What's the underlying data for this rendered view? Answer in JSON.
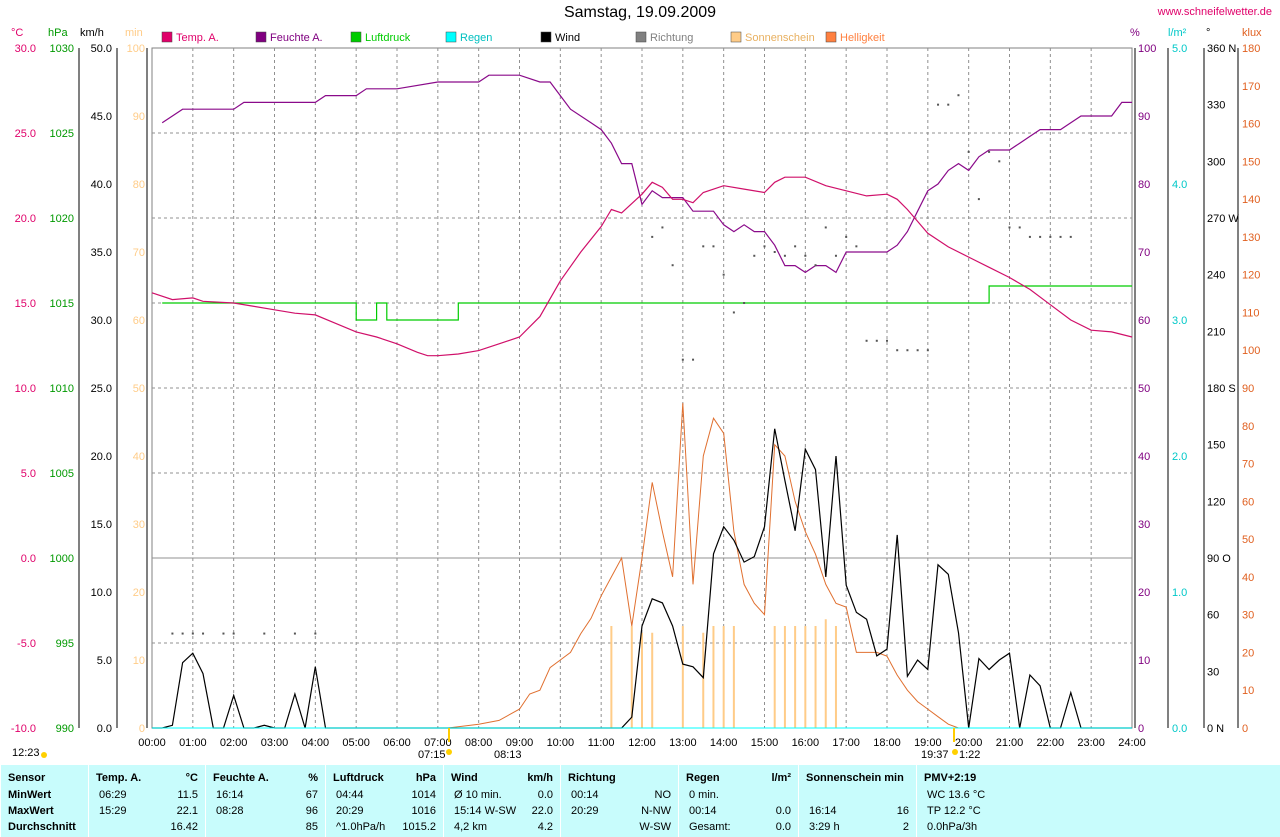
{
  "header": {
    "title": "Samstag, 19.09.2009",
    "url": "www.schneifelwetter.de"
  },
  "chart_data": {
    "type": "line",
    "title": "Samstag, 19.09.2009",
    "grid": true,
    "x_ticks": [
      "00:00",
      "01:00",
      "02:00",
      "03:00",
      "04:00",
      "05:00",
      "06:00",
      "07:00",
      "08:00",
      "09:00",
      "10:00",
      "11:00",
      "12:00",
      "13:00",
      "14:00",
      "15:00",
      "16:00",
      "17:00",
      "18:00",
      "19:00",
      "20:00",
      "21:00",
      "22:00",
      "23:00",
      "24:00"
    ],
    "axes": {
      "temp": {
        "unit": "°C",
        "color": "#e0006a",
        "ticks": [
          "30.0",
          "25.0",
          "20.0",
          "15.0",
          "10.0",
          "5.0",
          "0.0",
          "-5.0",
          "-10.0"
        ],
        "range": [
          -10,
          30
        ]
      },
      "press": {
        "unit": "hPa",
        "color": "#009900",
        "ticks": [
          "1030",
          "1025",
          "1020",
          "1015",
          "1010",
          "1005",
          "1000",
          "995",
          "990"
        ],
        "range": [
          990,
          1030
        ]
      },
      "wind": {
        "unit": "km/h",
        "color": "#000000",
        "ticks": [
          "50.0",
          "45.0",
          "40.0",
          "35.0",
          "30.0",
          "25.0",
          "20.0",
          "15.0",
          "10.0",
          "5.0",
          "0.0"
        ],
        "range": [
          0,
          50
        ]
      },
      "sun": {
        "unit": "min",
        "color": "#ffcc88",
        "ticks": [
          "100",
          "90",
          "80",
          "70",
          "60",
          "50",
          "40",
          "30",
          "20",
          "10",
          "0"
        ],
        "range": [
          0,
          100
        ]
      },
      "hum": {
        "unit": "%",
        "color": "#800080",
        "ticks": [
          "100",
          "90",
          "80",
          "70",
          "60",
          "50",
          "40",
          "30",
          "20",
          "10",
          "0"
        ],
        "range": [
          0,
          100
        ]
      },
      "rain": {
        "unit": "l/m²",
        "color": "#00c8c8",
        "ticks": [
          "5.0",
          "4.0",
          "3.0",
          "2.0",
          "1.0",
          "0.0"
        ],
        "range": [
          0,
          5
        ]
      },
      "dir": {
        "unit": "°",
        "color": "#000000",
        "ticks": [
          "360 N",
          "330",
          "300",
          "270 W",
          "240",
          "210",
          "180 S",
          "150",
          "120",
          "90 O",
          "60",
          "30",
          "0 N"
        ],
        "range": [
          0,
          360
        ]
      },
      "lux": {
        "unit": "klux",
        "color": "#e06020",
        "ticks": [
          "180",
          "170",
          "160",
          "150",
          "140",
          "130",
          "120",
          "110",
          "100",
          "90",
          "80",
          "70",
          "60",
          "50",
          "40",
          "30",
          "20",
          "10",
          "0"
        ],
        "range": [
          0,
          180
        ]
      }
    },
    "legend": [
      {
        "name": "Temp. A.",
        "color": "#e0006a"
      },
      {
        "name": "Feuchte A.",
        "color": "#800080"
      },
      {
        "name": "Luftdruck",
        "color": "#00cc00"
      },
      {
        "name": "Regen",
        "color": "#00ffff"
      },
      {
        "name": "Wind",
        "color": "#000000"
      },
      {
        "name": "Richtung",
        "color": "#808080"
      },
      {
        "name": "Sonnenschein",
        "color": "#ffcc88"
      },
      {
        "name": "Helligkeit",
        "color": "#ff8040"
      }
    ],
    "series": {
      "humidity": {
        "x": [
          0.25,
          0.75,
          1.0,
          2.0,
          2.25,
          3.0,
          4.0,
          4.25,
          5.0,
          5.25,
          6.0,
          7.0,
          7.25,
          8.0,
          8.25,
          9.0,
          9.5,
          9.75,
          10.0,
          10.25,
          10.75,
          11.0,
          11.25,
          11.5,
          11.75,
          12.0,
          12.25,
          12.5,
          12.75,
          13.0,
          13.25,
          13.5,
          13.75,
          14.0,
          14.25,
          14.5,
          14.75,
          15.0,
          15.25,
          15.5,
          15.75,
          16.0,
          16.25,
          16.5,
          16.75,
          17.0,
          17.25,
          17.5,
          17.75,
          18.0,
          18.25,
          18.5,
          18.75,
          19.0,
          19.25,
          19.5,
          19.75,
          20.0,
          20.25,
          20.5,
          20.75,
          21.0,
          21.25,
          21.5,
          21.75,
          22.0,
          22.25,
          22.5,
          22.75,
          23.0,
          23.25,
          23.5,
          23.75,
          24.0
        ],
        "y": [
          89,
          91,
          91,
          91,
          92,
          92,
          92,
          93,
          93,
          94,
          94,
          95,
          95,
          95,
          96,
          96,
          95,
          95,
          93,
          91,
          89,
          88,
          86,
          83,
          83,
          77,
          79,
          78,
          78,
          78,
          76,
          76,
          76,
          74,
          73,
          74,
          73,
          73,
          71,
          68,
          68,
          67,
          68,
          68,
          67,
          70,
          70,
          70,
          70,
          70,
          71,
          73,
          76,
          79,
          80,
          82,
          83,
          82,
          84,
          85,
          85,
          85,
          86,
          87,
          88,
          88,
          88,
          89,
          90,
          90,
          90,
          90,
          92,
          92
        ]
      },
      "temperature": {
        "x": [
          0.0,
          0.5,
          1.0,
          1.25,
          2.0,
          2.5,
          3.0,
          3.5,
          4.0,
          4.5,
          5.0,
          5.5,
          6.0,
          6.5,
          6.75,
          7.0,
          7.5,
          8.0,
          8.5,
          9.0,
          9.5,
          10.0,
          10.5,
          11.0,
          11.25,
          11.5,
          12.0,
          12.25,
          12.5,
          12.75,
          13.0,
          13.25,
          13.5,
          14.0,
          14.5,
          15.0,
          15.25,
          15.5,
          16.0,
          16.5,
          17.0,
          17.5,
          18.0,
          18.25,
          18.5,
          18.75,
          19.0,
          19.5,
          20.0,
          20.5,
          21.0,
          21.5,
          22.0,
          22.5,
          23.0,
          23.5,
          24.0
        ],
        "y": [
          15.6,
          15.2,
          15.3,
          15.1,
          15.0,
          14.8,
          14.6,
          14.4,
          14.3,
          13.8,
          13.3,
          13.0,
          12.6,
          12.1,
          11.9,
          11.9,
          12.0,
          12.2,
          12.6,
          13.0,
          14.2,
          16.3,
          18.0,
          19.5,
          20.5,
          20.3,
          21.4,
          22.1,
          21.8,
          21.1,
          21.1,
          20.9,
          21.5,
          21.9,
          21.7,
          21.5,
          22.1,
          22.4,
          22.4,
          21.9,
          21.6,
          21.3,
          21.4,
          21.1,
          20.5,
          19.8,
          19.1,
          18.3,
          17.7,
          17.1,
          16.5,
          15.8,
          14.9,
          14.0,
          13.4,
          13.3,
          13.0
        ]
      },
      "pressure": {
        "x": [
          0.25,
          4.5,
          4.75,
          5.0,
          5.25,
          5.5,
          5.75,
          6.0,
          6.5,
          7.0,
          7.25,
          7.5,
          8.0,
          9.0,
          10.0,
          11.0,
          12.0,
          13.0,
          14.0,
          15.0,
          16.0,
          17.0,
          18.0,
          19.0,
          19.5,
          20.0,
          20.25,
          20.5,
          21.0,
          22.0,
          23.0,
          24.0
        ],
        "y": [
          1015,
          1015,
          1015,
          1014,
          1014,
          1015,
          1014,
          1014,
          1014,
          1014,
          1014,
          1015,
          1015,
          1015,
          1015,
          1015,
          1015,
          1015,
          1015,
          1015,
          1015,
          1015,
          1015,
          1015,
          1015,
          1015,
          1015,
          1016,
          1016,
          1016,
          1016,
          1016
        ]
      },
      "wind": {
        "x": [
          0.0,
          0.25,
          0.5,
          0.75,
          1.0,
          1.25,
          1.5,
          1.75,
          2.0,
          2.25,
          2.5,
          2.75,
          3.0,
          3.25,
          3.5,
          3.75,
          4.0,
          4.25,
          4.5,
          4.75,
          5.0,
          11.5,
          11.75,
          12.0,
          12.25,
          12.5,
          12.75,
          13.0,
          13.25,
          13.5,
          13.75,
          14.0,
          14.25,
          14.5,
          14.75,
          15.0,
          15.25,
          15.5,
          15.75,
          16.0,
          16.25,
          16.5,
          16.75,
          17.0,
          17.25,
          17.5,
          17.75,
          18.0,
          18.25,
          18.5,
          18.75,
          19.0,
          19.25,
          19.5,
          19.75,
          20.0,
          20.25,
          20.5,
          20.75,
          21.0,
          21.25,
          21.5,
          21.75,
          22.0,
          22.25,
          22.5,
          22.75,
          23.0,
          23.25,
          23.5,
          23.75,
          24.0
        ],
        "y": [
          0,
          0,
          0.2,
          4.8,
          5.5,
          4.0,
          0,
          0,
          2.4,
          0,
          0,
          0.2,
          0,
          0,
          2.5,
          0,
          4.5,
          0,
          0,
          0,
          0,
          0,
          0.8,
          7.5,
          9.5,
          9.2,
          7.5,
          4.7,
          4.5,
          3.7,
          12.8,
          14.8,
          13.8,
          12.2,
          12.6,
          14.8,
          22.0,
          18.2,
          14.5,
          20.5,
          19.0,
          11.1,
          20.0,
          10.5,
          8.5,
          8.0,
          5.3,
          5.8,
          14.2,
          3.8,
          5.0,
          4.3,
          12.0,
          11.3,
          7.0,
          0,
          5.1,
          4.3,
          5.0,
          5.5,
          0,
          3.9,
          3.1,
          0,
          0,
          2.6,
          0,
          0,
          0,
          0,
          0,
          0
        ]
      },
      "brightness": {
        "x": [
          7.25,
          8.0,
          8.5,
          9.0,
          9.25,
          9.5,
          9.75,
          10.0,
          10.25,
          10.5,
          10.75,
          11.0,
          11.25,
          11.5,
          11.75,
          12.0,
          12.25,
          12.5,
          12.75,
          13.0,
          13.25,
          13.5,
          13.75,
          14.0,
          14.25,
          14.5,
          14.75,
          15.0,
          15.25,
          15.5,
          15.75,
          16.0,
          16.25,
          16.5,
          16.75,
          17.0,
          17.25,
          17.5,
          17.75,
          18.0,
          18.25,
          18.5,
          18.75,
          19.0,
          19.25,
          19.5,
          19.75
        ],
        "y": [
          0,
          1,
          2,
          5,
          9,
          10,
          16,
          18,
          20,
          25,
          29,
          35,
          40,
          45,
          27,
          45,
          65,
          52,
          40,
          86,
          38,
          72,
          82,
          78,
          52,
          38,
          33,
          30,
          75,
          72,
          60,
          52,
          46,
          38,
          33,
          32,
          20,
          20,
          20,
          19,
          14,
          10,
          7,
          5,
          3,
          1,
          0
        ]
      },
      "sunshine": {
        "x": [
          11.25,
          11.75,
          12.0,
          12.25,
          13.0,
          13.5,
          13.75,
          14.0,
          14.25,
          15.25,
          15.5,
          15.75,
          16.0,
          16.25,
          16.5,
          16.75
        ],
        "y": [
          15,
          15,
          14,
          14,
          15,
          14,
          15,
          15,
          15,
          15,
          15,
          15,
          15,
          15,
          16,
          15
        ]
      },
      "direction": {
        "x": [
          0.5,
          0.75,
          1.0,
          1.25,
          1.75,
          2.0,
          2.75,
          3.5,
          4.0,
          12.25,
          12.5,
          12.75,
          13.0,
          13.25,
          13.5,
          13.75,
          14.0,
          14.25,
          14.5,
          14.75,
          15.0,
          15.25,
          15.5,
          15.75,
          16.0,
          16.25,
          16.5,
          16.75,
          17.0,
          17.25,
          17.5,
          17.75,
          18.0,
          18.25,
          18.5,
          18.75,
          19.0,
          19.25,
          19.5,
          19.75,
          20.0,
          20.25,
          20.5,
          20.75,
          21.0,
          21.25,
          21.5,
          21.75,
          22.0,
          22.25,
          22.5
        ],
        "y": [
          50,
          50,
          50,
          50,
          50,
          50,
          50,
          50,
          50,
          260,
          265,
          245,
          195,
          195,
          255,
          255,
          240,
          220,
          225,
          250,
          255,
          252,
          250,
          255,
          250,
          245,
          265,
          250,
          260,
          255,
          205,
          205,
          205,
          200,
          200,
          200,
          200,
          330,
          330,
          335,
          305,
          280,
          305,
          300,
          265,
          265,
          260,
          260,
          260,
          260,
          260
        ]
      },
      "rain": {
        "x": [
          0.0,
          24.0
        ],
        "y": [
          0.0,
          0.0
        ]
      }
    },
    "markers": {
      "left_time": "12:23",
      "sunrise": "07:15",
      "sunrise_mark": "08:13",
      "sunset": "19:37",
      "sunset_mark": "1:22"
    }
  },
  "stats": {
    "columns": [
      {
        "header": "Sensor",
        "unit": "",
        "rows": [
          "MinWert",
          "MaxWert",
          "Durchschnitt"
        ]
      },
      {
        "header": "Temp. A.",
        "unit": "°C",
        "rows": [
          [
            "06:29",
            "11.5"
          ],
          [
            "15:29",
            "22.1"
          ],
          [
            "",
            "16.42"
          ]
        ]
      },
      {
        "header": "Feuchte A.",
        "unit": "%",
        "rows": [
          [
            "16:14",
            "67"
          ],
          [
            "08:28",
            "96"
          ],
          [
            "",
            "85"
          ]
        ]
      },
      {
        "header": "Luftdruck",
        "unit": "hPa",
        "rows": [
          [
            "04:44",
            "1014"
          ],
          [
            "20:29",
            "1016"
          ],
          [
            "^1.0hPa/h",
            "1015.2"
          ]
        ]
      },
      {
        "header": "Wind",
        "unit": "km/h",
        "rows": [
          [
            "Ø 10 min.",
            "0.0"
          ],
          [
            "15:14   W-SW",
            "22.0"
          ],
          [
            "4,2 km",
            "4.2"
          ]
        ]
      },
      {
        "header": "Richtung",
        "unit": "",
        "rows": [
          [
            "00:14",
            "NO"
          ],
          [
            "20:29",
            "N-NW"
          ],
          [
            "",
            "W-SW"
          ]
        ]
      },
      {
        "header": "Regen",
        "unit": "l/m²",
        "rows": [
          [
            "0 min.",
            ""
          ],
          [
            "00:14",
            "0.0"
          ],
          [
            "Gesamt:",
            "0.0"
          ]
        ]
      },
      {
        "header": "Sonnenschein min",
        "unit": "",
        "rows": [
          [
            "",
            ""
          ],
          [
            "16:14",
            "16"
          ],
          [
            "3:29 h",
            "2"
          ]
        ]
      },
      {
        "header": "PMV+2:19",
        "unit": "",
        "rows": [
          [
            "WC 13.6 °C",
            ""
          ],
          [
            "TP 12.2 °C",
            ""
          ],
          [
            "0.0hPa/3h",
            ""
          ]
        ]
      }
    ]
  }
}
